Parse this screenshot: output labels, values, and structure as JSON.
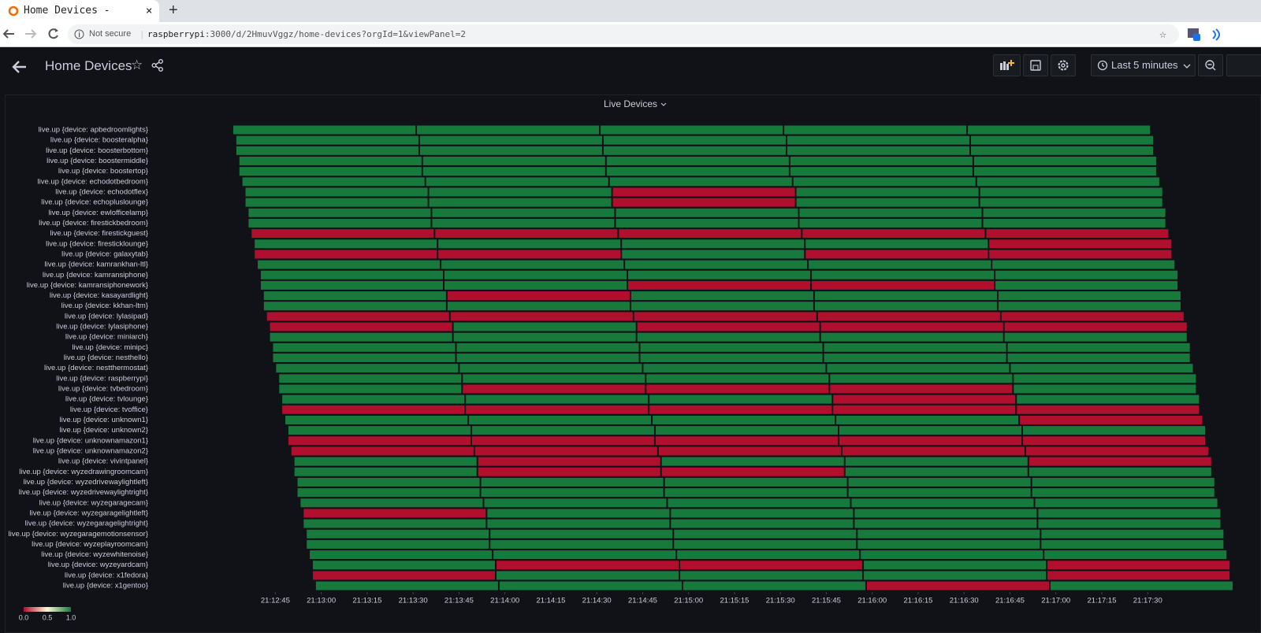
{
  "browser": {
    "tab_title": "Home Devices - Grafana",
    "security": "Not secure",
    "url_host": "raspberrypi",
    "url_path": ":3000/d/2HmuvVggz/home-devices?orgId=1&viewPanel=2"
  },
  "header": {
    "title": "Home Devices",
    "time_range": "Last 5 minutes"
  },
  "chart_data": {
    "type": "timeline",
    "title": "Live Devices",
    "xlim": [
      76351,
      76678
    ],
    "xticks": [
      {
        "value": 76365,
        "label": "21:12:45"
      },
      {
        "value": 76380,
        "label": "21:13:00"
      },
      {
        "value": 76395,
        "label": "21:13:15"
      },
      {
        "value": 76410,
        "label": "21:13:30"
      },
      {
        "value": 76425,
        "label": "21:13:45"
      },
      {
        "value": 76440,
        "label": "21:14:00"
      },
      {
        "value": 76455,
        "label": "21:14:15"
      },
      {
        "value": 76470,
        "label": "21:14:30"
      },
      {
        "value": 76485,
        "label": "21:14:45"
      },
      {
        "value": 76500,
        "label": "21:15:00"
      },
      {
        "value": 76515,
        "label": "21:15:15"
      },
      {
        "value": 76530,
        "label": "21:15:30"
      },
      {
        "value": 76545,
        "label": "21:15:45"
      },
      {
        "value": 76560,
        "label": "21:16:00"
      },
      {
        "value": 76575,
        "label": "21:16:15"
      },
      {
        "value": 76590,
        "label": "21:16:30"
      },
      {
        "value": 76605,
        "label": "21:16:45"
      },
      {
        "value": 76620,
        "label": "21:17:00"
      },
      {
        "value": 76635,
        "label": "21:17:15"
      },
      {
        "value": 76650,
        "label": "21:17:30"
      }
    ],
    "legend": {
      "ticks": [
        {
          "value": 0,
          "label": "0.0"
        },
        {
          "value": 0.5,
          "label": "0.5"
        },
        {
          "value": 1,
          "label": "1.0"
        }
      ],
      "colors": [
        "#b00f2e",
        "#fdf6d8",
        "#177a3c"
      ]
    },
    "series": [
      {
        "name": "live.up {device: apbedroomlights}",
        "bins": [
          76351,
          76411,
          76471,
          76531,
          76591,
          76651
        ],
        "values": [
          1,
          1,
          1,
          1,
          1
        ]
      },
      {
        "name": "live.up {device: boosteralpha}",
        "bins": [
          76352,
          76412,
          76472,
          76532,
          76592,
          76652
        ],
        "values": [
          1,
          1,
          1,
          1,
          1
        ]
      },
      {
        "name": "live.up {device: boosterbottom}",
        "bins": [
          76352,
          76412,
          76472,
          76532,
          76592,
          76652
        ],
        "values": [
          1,
          1,
          1,
          1,
          1
        ]
      },
      {
        "name": "live.up {device: boostermiddle}",
        "bins": [
          76353,
          76413,
          76473,
          76533,
          76593,
          76653
        ],
        "values": [
          1,
          1,
          1,
          1,
          1
        ]
      },
      {
        "name": "live.up {device: boostertop}",
        "bins": [
          76353,
          76413,
          76473,
          76533,
          76593,
          76653
        ],
        "values": [
          1,
          1,
          1,
          1,
          1
        ]
      },
      {
        "name": "live.up {device: echodotbedroom}",
        "bins": [
          76354,
          76414,
          76474,
          76534,
          76594,
          76654
        ],
        "values": [
          1,
          1,
          1,
          1,
          1
        ]
      },
      {
        "name": "live.up {device: echodotflex}",
        "bins": [
          76355,
          76415,
          76475,
          76535,
          76595,
          76655
        ],
        "values": [
          1,
          1,
          0,
          1,
          1
        ]
      },
      {
        "name": "live.up {device: echopluslounge}",
        "bins": [
          76355,
          76415,
          76475,
          76535,
          76595,
          76655
        ],
        "values": [
          1,
          1,
          0,
          1,
          1
        ]
      },
      {
        "name": "live.up {device: ewlofficelamp}",
        "bins": [
          76356,
          76416,
          76476,
          76536,
          76596,
          76656
        ],
        "values": [
          1,
          1,
          1,
          1,
          1
        ]
      },
      {
        "name": "live.up {device: firestickbedroom}",
        "bins": [
          76356,
          76416,
          76476,
          76536,
          76596,
          76656
        ],
        "values": [
          1,
          1,
          1,
          1,
          1
        ]
      },
      {
        "name": "live.up {device: firestickguest}",
        "bins": [
          76357,
          76417,
          76477,
          76537,
          76597,
          76657
        ],
        "values": [
          0,
          0,
          0,
          0,
          0
        ]
      },
      {
        "name": "live.up {device: firesticklounge}",
        "bins": [
          76358,
          76418,
          76478,
          76538,
          76598,
          76658
        ],
        "values": [
          1,
          1,
          1,
          1,
          0
        ]
      },
      {
        "name": "live.up {device: galaxytab}",
        "bins": [
          76358,
          76418,
          76478,
          76538,
          76598,
          76658
        ],
        "values": [
          0,
          0,
          1,
          0,
          0
        ]
      },
      {
        "name": "live.up {device: kamrankhan-ltl}",
        "bins": [
          76359,
          76419,
          76479,
          76539,
          76599,
          76659
        ],
        "values": [
          1,
          1,
          1,
          1,
          1
        ]
      },
      {
        "name": "live.up {device: kamransiphone}",
        "bins": [
          76360,
          76420,
          76480,
          76540,
          76600,
          76660
        ],
        "values": [
          1,
          1,
          1,
          1,
          1
        ]
      },
      {
        "name": "live.up {device: kamransiphonework}",
        "bins": [
          76360,
          76420,
          76480,
          76540,
          76600,
          76660
        ],
        "values": [
          1,
          1,
          0,
          0,
          1
        ]
      },
      {
        "name": "live.up {device: kasayardlight}",
        "bins": [
          76361,
          76421,
          76481,
          76541,
          76601,
          76661
        ],
        "values": [
          1,
          0,
          1,
          1,
          1
        ]
      },
      {
        "name": "live.up {device: kkhan-ltm}",
        "bins": [
          76361,
          76421,
          76481,
          76541,
          76601,
          76661
        ],
        "values": [
          1,
          1,
          1,
          1,
          1
        ]
      },
      {
        "name": "live.up {device: lylasipad}",
        "bins": [
          76362,
          76422,
          76482,
          76542,
          76602,
          76662
        ],
        "values": [
          0,
          0,
          0,
          0,
          0
        ]
      },
      {
        "name": "live.up {device: lylasiphone}",
        "bins": [
          76363,
          76423,
          76483,
          76543,
          76603,
          76663
        ],
        "values": [
          0,
          1,
          0,
          0,
          0
        ]
      },
      {
        "name": "live.up {device: miniarch}",
        "bins": [
          76363,
          76423,
          76483,
          76543,
          76603,
          76663
        ],
        "values": [
          1,
          1,
          1,
          1,
          1
        ]
      },
      {
        "name": "live.up {device: minipc}",
        "bins": [
          76364,
          76424,
          76484,
          76544,
          76604,
          76664
        ],
        "values": [
          1,
          1,
          1,
          1,
          1
        ]
      },
      {
        "name": "live.up {device: nesthello}",
        "bins": [
          76364,
          76424,
          76484,
          76544,
          76604,
          76664
        ],
        "values": [
          1,
          1,
          1,
          1,
          1
        ]
      },
      {
        "name": "live.up {device: nestthermostat}",
        "bins": [
          76365,
          76425,
          76485,
          76545,
          76605,
          76665
        ],
        "values": [
          1,
          1,
          1,
          1,
          1
        ]
      },
      {
        "name": "live.up {device: raspberrypi}",
        "bins": [
          76366,
          76426,
          76486,
          76546,
          76606,
          76666
        ],
        "values": [
          1,
          1,
          1,
          1,
          1
        ]
      },
      {
        "name": "live.up {device: tvbedroom}",
        "bins": [
          76366,
          76426,
          76486,
          76546,
          76606,
          76666
        ],
        "values": [
          1,
          0,
          0,
          0,
          1
        ]
      },
      {
        "name": "live.up {device: tvlounge}",
        "bins": [
          76367,
          76427,
          76487,
          76547,
          76607,
          76667
        ],
        "values": [
          1,
          1,
          1,
          0,
          1
        ]
      },
      {
        "name": "live.up {device: tvoffice}",
        "bins": [
          76367,
          76427,
          76487,
          76547,
          76607,
          76667
        ],
        "values": [
          0,
          0,
          0,
          0,
          0
        ]
      },
      {
        "name": "live.up {device: unknown1}",
        "bins": [
          76368,
          76428,
          76488,
          76548,
          76608,
          76668
        ],
        "values": [
          1,
          1,
          1,
          1,
          0
        ]
      },
      {
        "name": "live.up {device: unknown2}",
        "bins": [
          76369,
          76429,
          76489,
          76549,
          76609,
          76669
        ],
        "values": [
          1,
          1,
          1,
          1,
          1
        ]
      },
      {
        "name": "live.up {device: unknownamazon1}",
        "bins": [
          76369,
          76429,
          76489,
          76549,
          76609,
          76669
        ],
        "values": [
          0,
          0,
          0,
          0,
          0
        ]
      },
      {
        "name": "live.up {device: unknownamazon2}",
        "bins": [
          76370,
          76430,
          76490,
          76550,
          76610,
          76670
        ],
        "values": [
          0,
          0,
          0,
          0,
          0
        ]
      },
      {
        "name": "live.up {device: vivintpanel}",
        "bins": [
          76371,
          76431,
          76491,
          76551,
          76611,
          76671
        ],
        "values": [
          1,
          0,
          1,
          1,
          0
        ]
      },
      {
        "name": "live.up {device: wyzedrawingroomcam}",
        "bins": [
          76371,
          76431,
          76491,
          76551,
          76611,
          76671
        ],
        "values": [
          1,
          0,
          0,
          1,
          1
        ]
      },
      {
        "name": "live.up {device: wyzedrivewaylightleft}",
        "bins": [
          76372,
          76432,
          76492,
          76552,
          76612,
          76672
        ],
        "values": [
          1,
          1,
          1,
          1,
          1
        ]
      },
      {
        "name": "live.up {device: wyzedrivewaylightright}",
        "bins": [
          76372,
          76432,
          76492,
          76552,
          76612,
          76672
        ],
        "values": [
          1,
          1,
          1,
          1,
          1
        ]
      },
      {
        "name": "live.up {device: wyzegaragecam}",
        "bins": [
          76373,
          76433,
          76493,
          76553,
          76613,
          76673
        ],
        "values": [
          1,
          1,
          1,
          1,
          1
        ]
      },
      {
        "name": "live.up {device: wyzegaragelightleft}",
        "bins": [
          76374,
          76434,
          76494,
          76554,
          76614,
          76674
        ],
        "values": [
          0,
          1,
          1,
          1,
          1
        ]
      },
      {
        "name": "live.up {device: wyzegaragelightright}",
        "bins": [
          76374,
          76434,
          76494,
          76554,
          76614,
          76674
        ],
        "values": [
          1,
          1,
          1,
          1,
          1
        ]
      },
      {
        "name": "live.up {device: wyzegaragemotionsensor}",
        "bins": [
          76375,
          76435,
          76495,
          76555,
          76615,
          76675
        ],
        "values": [
          1,
          1,
          1,
          1,
          1
        ]
      },
      {
        "name": "live.up {device: wyzeplayroomcam}",
        "bins": [
          76375,
          76435,
          76495,
          76555,
          76615,
          76675
        ],
        "values": [
          1,
          1,
          1,
          1,
          1
        ]
      },
      {
        "name": "live.up {device: wyzewhitenoise}",
        "bins": [
          76376,
          76436,
          76496,
          76556,
          76616,
          76676
        ],
        "values": [
          1,
          1,
          1,
          1,
          1
        ]
      },
      {
        "name": "live.up {device: wyzeyardcam}",
        "bins": [
          76377,
          76437,
          76497,
          76557,
          76617,
          76677
        ],
        "values": [
          1,
          0,
          0,
          1,
          0
        ]
      },
      {
        "name": "live.up {device: x1fedora}",
        "bins": [
          76377,
          76437,
          76497,
          76557,
          76617,
          76677
        ],
        "values": [
          0,
          1,
          1,
          1,
          0
        ]
      },
      {
        "name": "live.up {device: x1gentoo}",
        "bins": [
          76378,
          76438,
          76498,
          76558,
          76618,
          76678
        ],
        "values": [
          1,
          1,
          1,
          0,
          1
        ]
      }
    ]
  }
}
